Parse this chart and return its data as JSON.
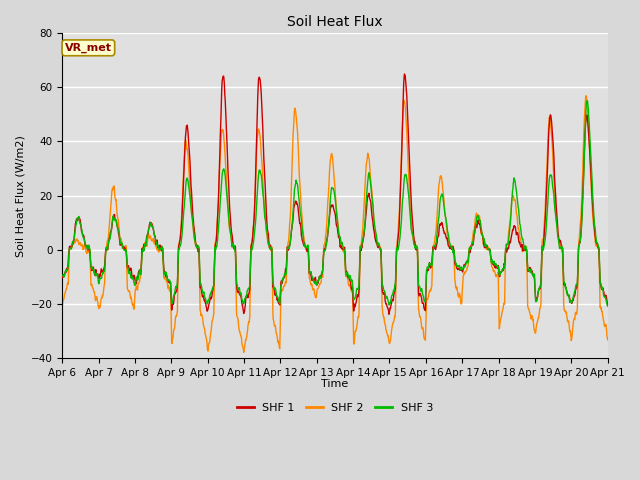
{
  "title": "Soil Heat Flux",
  "ylabel": "Soil Heat Flux (W/m2)",
  "xlabel": "Time",
  "ylim": [
    -40,
    80
  ],
  "yticks": [
    -40,
    -20,
    0,
    20,
    40,
    60,
    80
  ],
  "legend_labels": [
    "SHF 1",
    "SHF 2",
    "SHF 3"
  ],
  "colors": [
    "#cc0000",
    "#ff8800",
    "#00bb00"
  ],
  "annotation_text": "VR_met",
  "annotation_box_color": "#ffffcc",
  "annotation_text_color": "#880000",
  "x_tick_labels": [
    "Apr 6",
    "Apr 7",
    "Apr 8",
    "Apr 9",
    "Apr 10",
    "Apr 11",
    "Apr 12",
    "Apr 13",
    "Apr 14",
    "Apr 15",
    "Apr 16",
    "Apr 17",
    "Apr 18",
    "Apr 19",
    "Apr 20",
    "Apr 21"
  ],
  "bg_color": "#d8d8d8",
  "plot_bg_color": "#e0e0e0",
  "grid_color": "#ffffff",
  "n_days": 15,
  "points_per_day": 96,
  "title_fontsize": 10,
  "label_fontsize": 8,
  "tick_fontsize": 7.5
}
